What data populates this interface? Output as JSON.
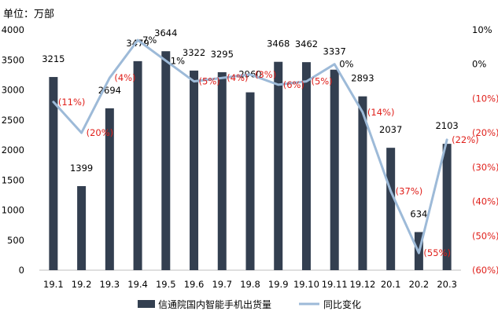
{
  "chart_data": {
    "type": "bar",
    "unit_label": "单位：万部",
    "categories": [
      "19.1",
      "19.2",
      "19.3",
      "19.4",
      "19.5",
      "19.6",
      "19.7",
      "19.8",
      "19.9",
      "19.10",
      "19.11",
      "19.12",
      "20.1",
      "20.2",
      "20.3"
    ],
    "series": [
      {
        "name": "信通院国内智能手机出货量",
        "type": "bar",
        "axis": "left",
        "color": "#333f50",
        "values": [
          3215,
          1399,
          2694,
          3479,
          3644,
          3322,
          3295,
          2960,
          3468,
          3462,
          3337,
          2893,
          2037,
          634,
          2103
        ],
        "labels": [
          "3215",
          "1399",
          "2694",
          "3479",
          "3644",
          "3322",
          "3295",
          "2960",
          "3468",
          "3462",
          "3337",
          "2893",
          "2037",
          "634",
          "2103"
        ]
      },
      {
        "name": "同比变化",
        "type": "line",
        "axis": "right",
        "color": "#9dbad8",
        "values": [
          -11,
          -20,
          -4,
          7,
          1,
          -5,
          -4,
          -3,
          -6,
          -5,
          0,
          -14,
          -37,
          -55,
          -22
        ],
        "labels": [
          "(11%)",
          "(20%)",
          "(4%)",
          "7%",
          "1%",
          "(5%)",
          "(4%)",
          "(3%)",
          "(6%)",
          "(5%)",
          "0%",
          "(14%)",
          "(37%)",
          "(55%)",
          "(22%)"
        ]
      }
    ],
    "y_left": {
      "range": [
        0,
        4000
      ],
      "ticks": [
        0,
        500,
        1000,
        1500,
        2000,
        2500,
        3000,
        3500,
        4000
      ],
      "tick_labels": [
        "0",
        "500",
        "1000",
        "1500",
        "2000",
        "2500",
        "3000",
        "3500",
        "4000"
      ]
    },
    "y_right": {
      "range": [
        -60,
        10
      ],
      "ticks": [
        10,
        0,
        -10,
        -20,
        -30,
        -40,
        -50,
        -60
      ],
      "tick_labels": [
        "10%",
        "0%",
        "(10%)",
        "(20%)",
        "(30%)",
        "(40%)",
        "(50%)",
        "(60%)"
      ]
    },
    "grid": false,
    "legend_position": "bottom",
    "colors": {
      "bar": "#333f50",
      "line": "#9dbad8",
      "negative_label": "#e0201b",
      "positive_label": "#000000"
    }
  }
}
